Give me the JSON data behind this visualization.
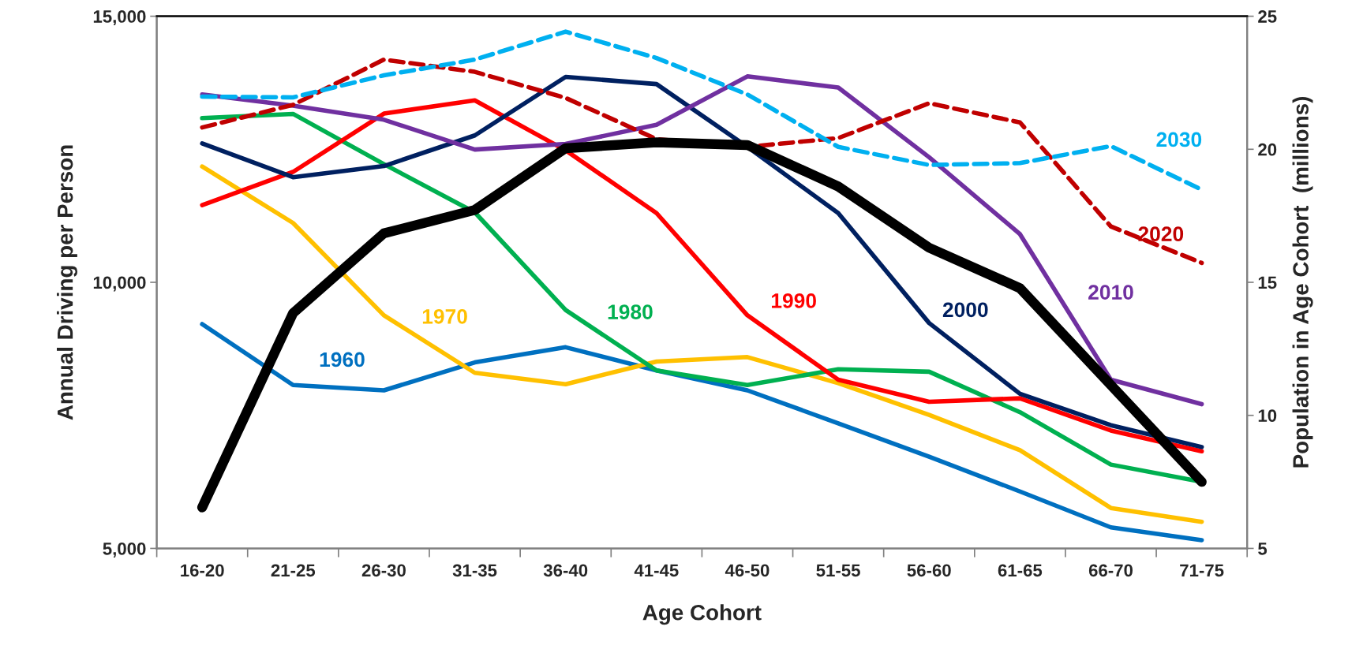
{
  "chart_data": {
    "type": "line",
    "xlabel": "Age Cohort",
    "ylabel": "Annual Driving per Person",
    "y2label": "Population in Age Cohort  (millions)",
    "categories": [
      "16-20",
      "21-25",
      "26-30",
      "31-35",
      "36-40",
      "41-45",
      "46-50",
      "51-55",
      "56-60",
      "61-65",
      "66-70",
      "71-75"
    ],
    "ylim": [
      5000,
      15000
    ],
    "yticks": [
      {
        "value": 5000,
        "label": "5,000"
      },
      {
        "value": 10000,
        "label": "10,000"
      },
      {
        "value": 15000,
        "label": "15,000"
      }
    ],
    "y2lim": [
      5,
      25
    ],
    "y2ticks": [
      5,
      10,
      15,
      20,
      25
    ],
    "grid": false,
    "legend": false,
    "series": [
      {
        "color": "#000000",
        "line_style": "solid",
        "values": [
          5770,
          9420,
          10920,
          11360,
          12520,
          12630,
          12580,
          11800,
          10650,
          9890,
          8070,
          6250
        ]
      },
      {
        "name": "1960",
        "axis": "y2",
        "color": "#0070c0",
        "line_style": "solid",
        "values": [
          13.43,
          11.14,
          10.94,
          11.99,
          12.56,
          11.69,
          10.94,
          9.7,
          8.45,
          7.14,
          5.79,
          5.31
        ]
      },
      {
        "name": "1970",
        "axis": "y2",
        "color": "#ffc000",
        "line_style": "solid",
        "values": [
          19.35,
          17.23,
          13.76,
          11.6,
          11.17,
          12.02,
          12.19,
          11.21,
          10.02,
          8.69,
          6.52,
          6.0
        ]
      },
      {
        "name": "1980",
        "axis": "y2",
        "color": "#00b050",
        "line_style": "solid",
        "values": [
          21.17,
          21.33,
          19.44,
          17.63,
          13.96,
          11.69,
          11.14,
          11.73,
          11.64,
          10.12,
          8.15,
          7.5
        ]
      },
      {
        "name": "1990",
        "axis": "y2",
        "color": "#ff0000",
        "line_style": "solid",
        "values": [
          17.9,
          19.15,
          21.34,
          21.84,
          19.96,
          17.6,
          13.76,
          11.34,
          10.51,
          10.64,
          9.43,
          8.65
        ]
      },
      {
        "name": "2000",
        "axis": "y2",
        "color": "#002060",
        "line_style": "solid",
        "values": [
          20.22,
          18.95,
          19.37,
          20.52,
          22.72,
          22.45,
          20.09,
          17.6,
          13.47,
          10.81,
          9.63,
          8.81
        ]
      },
      {
        "name": "2010",
        "axis": "y2",
        "color": "#7030a0",
        "line_style": "solid",
        "values": [
          22.06,
          21.64,
          21.11,
          19.99,
          20.2,
          20.92,
          22.74,
          22.32,
          19.7,
          16.81,
          11.34,
          10.42
        ]
      },
      {
        "name": "2020",
        "axis": "y2",
        "color": "#c00000",
        "line_style": "dashed",
        "values": [
          20.82,
          21.67,
          23.37,
          22.91,
          21.93,
          20.38,
          20.09,
          20.42,
          21.73,
          21.01,
          17.1,
          15.73
        ]
      },
      {
        "name": "2030",
        "axis": "y2",
        "color": "#00b0f0",
        "line_style": "dashed",
        "values": [
          21.98,
          21.95,
          22.78,
          23.37,
          24.42,
          23.43,
          22.06,
          20.09,
          19.41,
          19.48,
          20.12,
          18.48
        ]
      }
    ]
  }
}
